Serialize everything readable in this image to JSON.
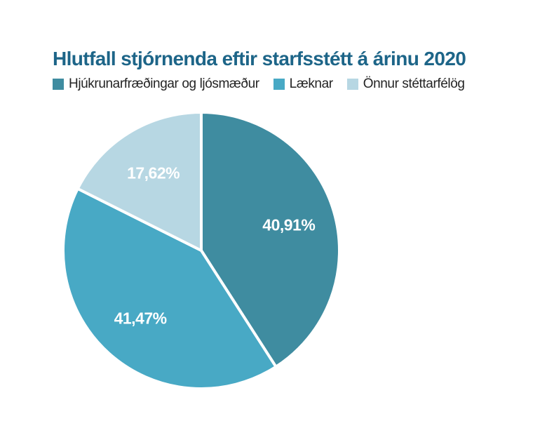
{
  "title": {
    "text": "Hlutfall stjórnenda eftir starfsstétt á árinu 2020",
    "color": "#1D6588"
  },
  "legend": {
    "items": [
      {
        "label": "Hjúkrunarfræðingar og ljósmæður",
        "color": "#3F8CA0"
      },
      {
        "label": "Læknar",
        "color": "#48A9C5"
      },
      {
        "label": "Önnur stéttarfélög",
        "color": "#B7D7E3"
      }
    ]
  },
  "chart_data": {
    "type": "pie",
    "title": "Hlutfall stjórnenda eftir starfsstétt á árinu 2020",
    "categories": [
      "Hjúkrunarfræðingar og ljósmæður",
      "Læknar",
      "Önnur stéttarfélög"
    ],
    "values": [
      40.91,
      41.47,
      17.62
    ],
    "display_labels": [
      "40,91%",
      "41,47%",
      "17,62%"
    ],
    "colors": [
      "#3F8CA0",
      "#48A9C5",
      "#B7D7E3"
    ],
    "label_color": "#FFFFFF",
    "separator_color": "#FFFFFF",
    "start_position": "12-oclock",
    "direction": "clockwise",
    "legend_position": "top-left"
  }
}
